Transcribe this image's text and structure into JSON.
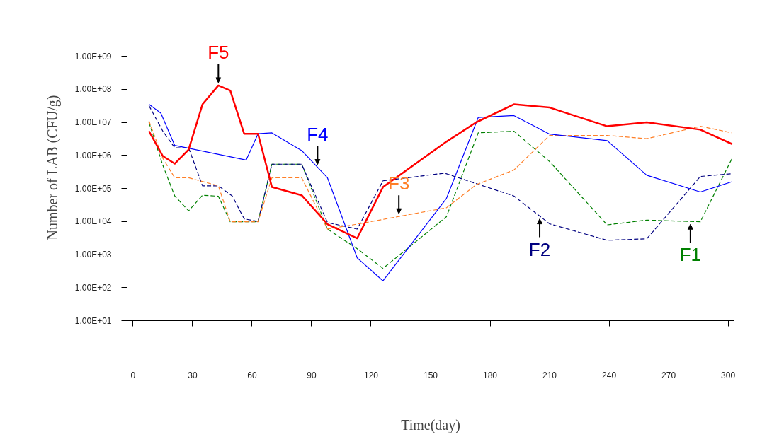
{
  "chart_data": {
    "type": "line",
    "xlabel": "Time(day)",
    "ylabel": "Number of LAB (CFU/g)",
    "log": "y",
    "grid": false,
    "xlim": [
      -3,
      303
    ],
    "xticks": [
      0,
      30,
      60,
      90,
      120,
      150,
      180,
      210,
      240,
      270,
      300
    ],
    "ylim": [
      10,
      1000000000
    ],
    "yticks": [
      {
        "value": 10,
        "label": "1.00E+01"
      },
      {
        "value": 100,
        "label": "1.00E+02"
      },
      {
        "value": 1000,
        "label": "1.00E+03"
      },
      {
        "value": 10000,
        "label": "1.00E+04"
      },
      {
        "value": 100000,
        "label": "1.00E+05"
      },
      {
        "value": 1000000,
        "label": "1.00E+06"
      },
      {
        "value": 10000000,
        "label": "1.00E+07"
      },
      {
        "value": 100000000,
        "label": "1.00E+08"
      },
      {
        "value": 1000000000,
        "label": "1.00E+09"
      }
    ],
    "series": [
      {
        "name": "F1",
        "color": "#008000",
        "line_style": "dashed",
        "x": [
          8,
          15,
          21,
          28,
          35,
          43,
          49,
          63,
          70,
          85,
          98,
          113,
          126,
          158,
          174,
          192,
          210,
          239,
          259,
          286,
          302
        ],
        "values": [
          10000000.0,
          500000.0,
          59000.0,
          21000.0,
          62000.0,
          58000.0,
          9800.0,
          9800.0,
          540000.0,
          540000.0,
          5900.0,
          1500.0,
          380.0,
          14000.0,
          4800000.0,
          5400000.0,
          650000.0,
          7900.0,
          11000.0,
          9800.0,
          810000.0
        ]
      },
      {
        "name": "F2",
        "color": "#000080",
        "line_style": "dashed",
        "x": [
          8,
          15,
          21,
          28,
          35,
          43,
          50,
          56,
          63,
          70,
          85,
          98,
          113,
          126,
          157,
          192,
          210,
          239,
          259,
          286,
          302
        ],
        "values": [
          32000000.0,
          5400000.0,
          1700000.0,
          1700000.0,
          120000.0,
          120000.0,
          59000.0,
          12000.0,
          10000.0,
          540000.0,
          540000.0,
          9300.0,
          5900.0,
          170000.0,
          290000.0,
          59000.0,
          8500.0,
          2700.0,
          3000.0,
          230000.0,
          280000.0
        ]
      },
      {
        "name": "F3",
        "color": "#ff7f27",
        "line_style": "dashed",
        "x": [
          8,
          15,
          21,
          28,
          43,
          49,
          63,
          70,
          85,
          98,
          113,
          158,
          173,
          192,
          210,
          239,
          259,
          286,
          302
        ],
        "values": [
          11000000.0,
          810000.0,
          210000.0,
          210000.0,
          120000.0,
          9800.0,
          9800.0,
          210000.0,
          210000.0,
          5900.0,
          8300.0,
          26000.0,
          130000.0,
          360000.0,
          4000000.0,
          4000000.0,
          3200000.0,
          7600000.0,
          4800000.0
        ]
      },
      {
        "name": "F4",
        "color": "#0000ff",
        "line_style": "solid",
        "x": [
          8,
          14,
          21,
          57,
          63,
          70,
          85,
          98,
          113,
          126,
          158,
          174,
          192,
          210,
          239,
          259,
          286,
          302
        ],
        "values": [
          35000000.0,
          19000000.0,
          2000000.0,
          720000.0,
          4500000.0,
          4800000.0,
          1400000.0,
          210000.0,
          790.0,
          160.0,
          50000.0,
          14000000.0,
          16000000.0,
          4400000.0,
          2800000.0,
          250000.0,
          78000.0,
          160000.0
        ]
      },
      {
        "name": "F5",
        "color": "#ff0000",
        "line_style": "solid",
        "x": [
          8,
          15,
          21,
          28,
          35,
          43,
          49,
          56,
          63,
          70,
          85,
          98,
          113,
          126,
          158,
          173,
          192,
          210,
          239,
          259,
          286,
          302
        ],
        "values": [
          5400000.0,
          950000.0,
          560000.0,
          1500000.0,
          35000000.0,
          130000000.0,
          91000000.0,
          4500000.0,
          4500000.0,
          110000.0,
          62000.0,
          8300.0,
          3100.0,
          110000.0,
          2600000.0,
          10000000.0,
          35000000.0,
          28000000.0,
          7600000.0,
          10000000.0,
          6000000.0,
          2200000.0
        ]
      }
    ]
  }
}
